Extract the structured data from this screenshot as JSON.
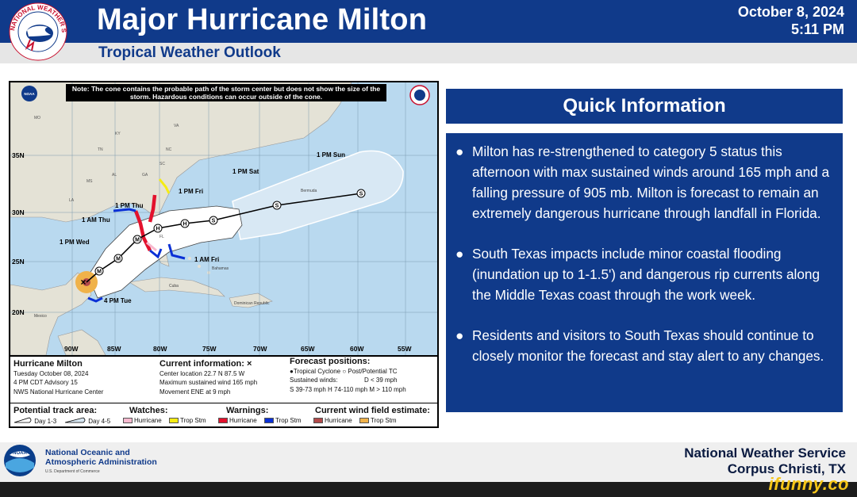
{
  "header": {
    "title": "Major Hurricane Milton",
    "subtitle": "Tropical Weather Outlook",
    "date": "October 8, 2024",
    "time": "5:11 PM",
    "logo_text": "NATIONAL WEATHER SERVICE",
    "logo_icon": "nws-logo"
  },
  "map": {
    "note": "Note: The cone contains the probable path of the storm center but does not show the size of the storm. Hazardous conditions can occur outside of the cone.",
    "lat_labels": [
      "35N",
      "30N",
      "25N",
      "20N"
    ],
    "lon_labels": [
      "90W",
      "85W",
      "80W",
      "75W",
      "70W",
      "65W",
      "60W",
      "55W"
    ],
    "forecast_points": [
      {
        "label": "4 PM Tue",
        "letter": "M"
      },
      {
        "label": "1 PM Wed",
        "letter": "M"
      },
      {
        "label": "1 AM Thu",
        "letter": "M"
      },
      {
        "label": "1 PM Thu",
        "letter": "H"
      },
      {
        "label": "1 AM Fri",
        "letter": "H"
      },
      {
        "label": "1 PM Fri",
        "letter": "S"
      },
      {
        "label": "1 PM Sat",
        "letter": "S"
      },
      {
        "label": "1 PM Sun",
        "letter": "S"
      }
    ],
    "place_labels": [
      "Bahamas",
      "Cuba",
      "Dominican Republic",
      "Mexico",
      "Bermuda"
    ],
    "state_labels": [
      "MO",
      "KY",
      "VA",
      "TN",
      "NC",
      "SC",
      "GA",
      "AL",
      "MS",
      "LA",
      "FL"
    ],
    "colors": {
      "ocean": "#b9d9ef",
      "land": "#e4e2d6",
      "cone_day13": "#ffffff",
      "cone_day45": "#d8e8f4",
      "hurricane_warning": "#e3122d",
      "hurricane_watch": "#f7b9cf",
      "trop_storm_warning": "#0a30d6",
      "trop_storm_watch": "#f5ec14",
      "wind_field_hurricane": "#b24a4a",
      "wind_field_tropical": "#f0b24a"
    }
  },
  "legend": {
    "storm": {
      "name": "Hurricane Milton",
      "date": "Tuesday October 08, 2024",
      "advisory": "4 PM CDT Advisory 15",
      "source": "NWS National Hurricane Center"
    },
    "current": {
      "heading": "Current information: ×",
      "location": "Center location 22.7 N 87.5 W",
      "wind": "Maximum sustained wind 165 mph",
      "movement": "Movement ENE at 9 mph"
    },
    "forecast": {
      "heading": "Forecast positions:",
      "types": "●Tropical Cyclone  ○ Post/Potential TC",
      "winds_label": "Sustained winds:",
      "d_scale": "D < 39 mph",
      "scale": "S 39-73 mph  H 74-110 mph  M > 110 mph"
    },
    "track": {
      "heading": "Potential track area:",
      "day13": "Day 1-3",
      "day45": "Day 4-5"
    },
    "watches": {
      "heading": "Watches:",
      "hurricane": "Hurricane",
      "trop_storm": "Trop Stm"
    },
    "warnings": {
      "heading": "Warnings:",
      "hurricane": "Hurricane",
      "trop_storm": "Trop Stm"
    },
    "wind_field": {
      "heading": "Current wind field estimate:",
      "hurricane": "Hurricane",
      "trop_storm": "Trop Stm"
    }
  },
  "quick_info": {
    "title": "Quick Information",
    "items": [
      "Milton has re-strengthened to category 5 status this afternoon with max sustained winds around 165 mph and a falling pressure of 905 mb. Milton is forecast to remain an extremely dangerous hurricane through landfall in Florida.",
      "South Texas impacts include minor coastal flooding (inundation up to 1-1.5') and dangerous rip currents along the Middle Texas coast through the work week.",
      "Residents and visitors to South Texas should continue to closely monitor the forecast and stay alert to any changes."
    ],
    "bullet": "●"
  },
  "footer": {
    "noaa_line1": "National Oceanic and",
    "noaa_line2": "Atmospheric Administration",
    "noaa_line3": "U.S. Department of Commerce",
    "office_line1": "National Weather Service",
    "office_line2": "Corpus Christi, TX"
  },
  "watermark": "ifunny.co"
}
